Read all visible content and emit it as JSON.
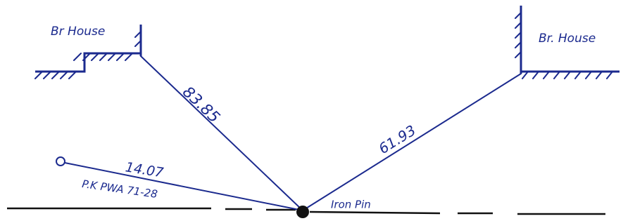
{
  "labels": {
    "left_house": "Br House",
    "right_house": "Br. House",
    "left_distance": "83.85",
    "right_distance": "61.93",
    "short_distance": "14.07",
    "reference": "P.K PWA 71-28",
    "pin": "Iron Pin"
  }
}
